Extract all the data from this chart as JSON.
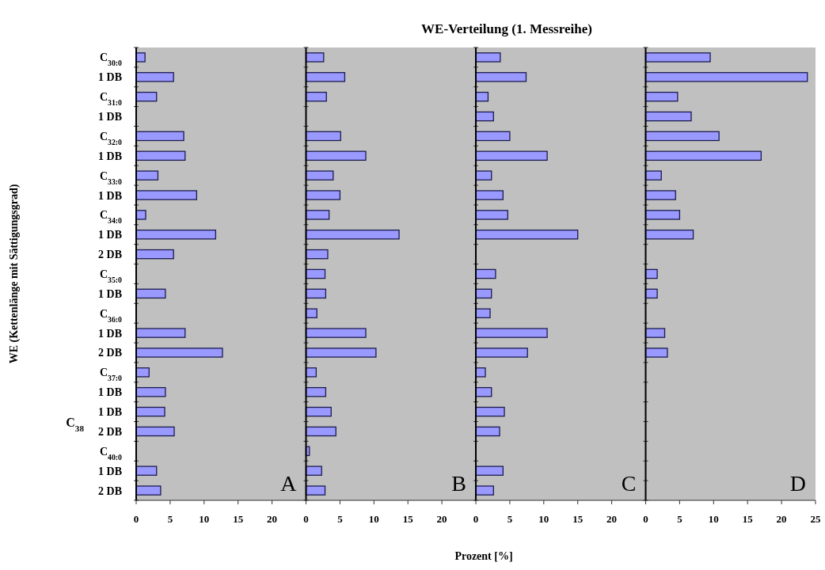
{
  "chart_data": [
    {
      "type": "bar",
      "orientation": "horizontal",
      "ylabel": "WE (Kettenlänge mit Sättigungsgrad)",
      "annotations": [
        "A",
        "C$_{38}$"
      ],
      "categories": [
        "C$_{30:0}$",
        "1 DB",
        "C$_{31:0}$",
        "1 DB",
        "C$_{32:0}$",
        "1 DB",
        "C$_{33:0}$",
        "1 DB",
        "C$_{34:0}$",
        "1 DB",
        "2 DB",
        "C$_{35:0}$",
        "1 DB",
        "C$_{36:0}$",
        "1 DB",
        "2 DB",
        "C$_{37:0}$",
        "1 DB",
        "1 DB",
        "2 DB",
        "C$_{40:0}$",
        "1 DB",
        "2 DB"
      ],
      "series": [
        {
          "color": "#9999ff",
          "values": [
            1.3,
            5.5,
            3.0,
            null,
            7.0,
            7.2,
            3.2,
            8.9,
            1.4,
            11.7,
            5.5,
            null,
            4.3,
            null,
            7.2,
            12.7,
            1.9,
            4.3,
            4.2,
            5.6,
            null,
            3.0,
            3.6
          ]
        }
      ],
      "xlim": [
        0,
        25
      ],
      "xticks": [
        0,
        5,
        10,
        15,
        20
      ]
    },
    {
      "type": "bar",
      "orientation": "horizontal",
      "annotations": [
        "B"
      ],
      "tick_labels": "x",
      "categories": [
        null,
        null,
        null,
        null,
        null,
        null,
        null,
        null,
        null,
        null,
        null,
        null,
        null,
        null,
        null,
        null,
        null,
        null,
        null,
        null,
        null,
        null,
        null
      ],
      "series": [
        {
          "color": "#9999ff",
          "values": [
            2.6,
            5.7,
            3.0,
            null,
            5.1,
            8.8,
            4.0,
            5.0,
            3.4,
            13.7,
            3.2,
            2.8,
            2.9,
            1.6,
            8.8,
            10.3,
            1.5,
            2.9,
            3.7,
            4.4,
            0.5,
            2.3,
            2.8
          ]
        }
      ],
      "xlim": [
        0,
        25
      ],
      "xticks": [
        0,
        5,
        10,
        15,
        20
      ]
    },
    {
      "type": "bar",
      "orientation": "horizontal",
      "title": "WE-Verteilung (1. Messreihe)",
      "xlabel": "Prozent [%]",
      "annotations": [
        "C"
      ],
      "tick_labels": "x",
      "categories": [
        null,
        null,
        null,
        null,
        null,
        null,
        null,
        null,
        null,
        null,
        null,
        null,
        null,
        null,
        null,
        null,
        null,
        null,
        null,
        null,
        null,
        null,
        null
      ],
      "series": [
        {
          "color": "#9999ff",
          "values": [
            3.6,
            7.4,
            1.8,
            2.6,
            5.0,
            10.5,
            2.3,
            4.0,
            4.7,
            15.0,
            null,
            2.9,
            2.3,
            2.1,
            10.5,
            7.6,
            1.4,
            2.3,
            4.2,
            3.5,
            null,
            4.0,
            2.6
          ]
        }
      ],
      "xlim": [
        0,
        25
      ],
      "xticks": [
        0,
        5,
        10,
        15,
        20
      ]
    },
    {
      "type": "bar",
      "orientation": "horizontal",
      "annotations": [
        "D"
      ],
      "tick_labels": "x",
      "categories": [
        null,
        null,
        null,
        null,
        null,
        null,
        null,
        null,
        null,
        null,
        null,
        null,
        null,
        null,
        null,
        null,
        null,
        null,
        null,
        null,
        null,
        null,
        null
      ],
      "series": [
        {
          "color": "#9999ff",
          "values": [
            9.5,
            23.8,
            4.7,
            6.7,
            10.8,
            17.0,
            2.3,
            4.4,
            5.0,
            7.0,
            null,
            1.7,
            1.7,
            null,
            2.8,
            3.2,
            null,
            null,
            null,
            null,
            null,
            null,
            null
          ]
        }
      ],
      "xlim": [
        0,
        25
      ],
      "xticks": [
        0,
        5,
        10,
        15,
        20,
        25
      ]
    }
  ]
}
